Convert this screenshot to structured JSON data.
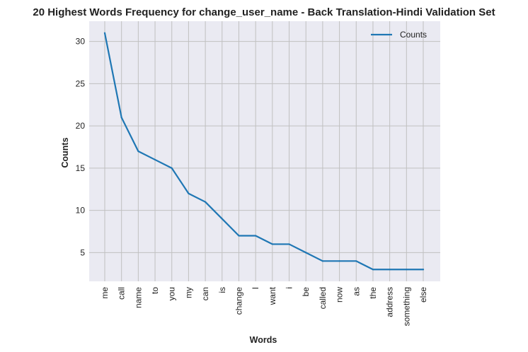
{
  "chart_data": {
    "type": "line",
    "title": "20 Highest Words Frequency for change_user_name - Back Translation-Hindi Validation Set",
    "xlabel": "Words",
    "ylabel": "Counts",
    "categories": [
      "me",
      "call",
      "name",
      "to",
      "you",
      "my",
      "can",
      "is",
      "change",
      "I",
      "want",
      "i",
      "be",
      "called",
      "now",
      "as",
      "the",
      "address",
      "something",
      "else"
    ],
    "series": [
      {
        "name": "Counts",
        "values": [
          31,
          21,
          17,
          16,
          15,
          12,
          11,
          9,
          7,
          7,
          6,
          6,
          5,
          4,
          4,
          4,
          3,
          3,
          3,
          3
        ],
        "color": "#1f77b4"
      }
    ],
    "yticks": [
      5,
      10,
      15,
      20,
      25,
      30
    ],
    "ylim": [
      1.6,
      32.4
    ],
    "grid": true,
    "legend_position": "top-right",
    "background": "#eaeaf2",
    "grid_color": "#c0c0c0"
  }
}
